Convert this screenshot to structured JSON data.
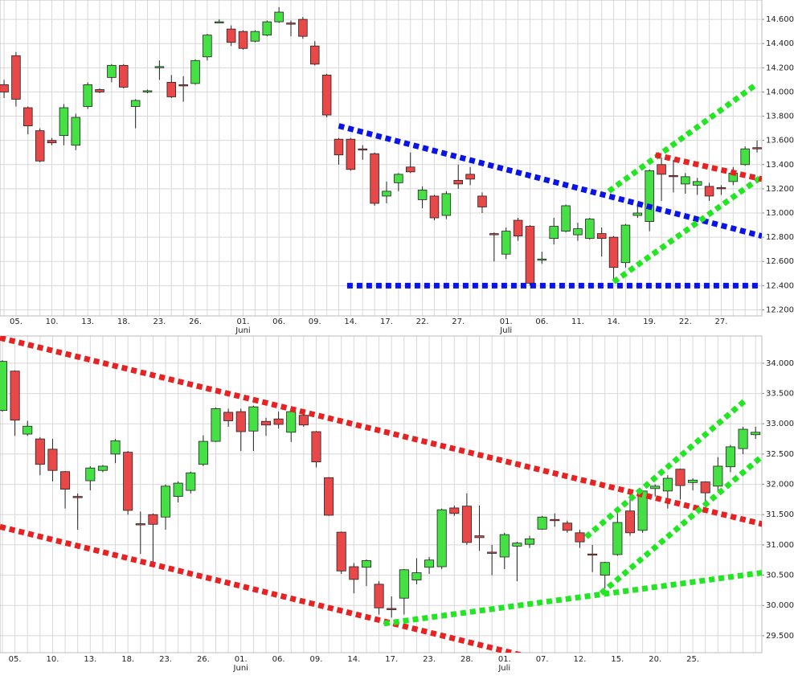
{
  "chart_data": [
    {
      "type": "candlestick",
      "up_color": "#44e044",
      "down_color": "#e84848",
      "grid": true,
      "xlim": [
        -0.34,
        63.4
      ],
      "ylim": [
        12150,
        14760
      ],
      "yticks": [
        {
          "value": 12200,
          "label": "12.200"
        },
        {
          "value": 12400,
          "label": "12.400"
        },
        {
          "value": 12600,
          "label": "12.600"
        },
        {
          "value": 12800,
          "label": "12.800"
        },
        {
          "value": 13000,
          "label": "13.000"
        },
        {
          "value": 13200,
          "label": "13.200"
        },
        {
          "value": 13400,
          "label": "13.400"
        },
        {
          "value": 13600,
          "label": "13.600"
        },
        {
          "value": 13800,
          "label": "13.800"
        },
        {
          "value": 14000,
          "label": "14.000"
        },
        {
          "value": 14200,
          "label": "14.200"
        },
        {
          "value": 14400,
          "label": "14.400"
        },
        {
          "value": 14600,
          "label": "14.600"
        }
      ],
      "categories": [
        null,
        "05.",
        null,
        null,
        "10.",
        null,
        null,
        "13.",
        null,
        null,
        "18.",
        null,
        null,
        "23.",
        null,
        null,
        "26.",
        null,
        null,
        null,
        "01. Juni",
        null,
        null,
        "06.",
        null,
        null,
        "09.",
        null,
        null,
        "14.",
        null,
        null,
        "17.",
        null,
        null,
        "22.",
        null,
        null,
        "27.",
        null,
        null,
        null,
        "01. Juli",
        null,
        null,
        "06.",
        null,
        null,
        "11.",
        null,
        null,
        "14.",
        null,
        null,
        "19.",
        null,
        null,
        "22.",
        null,
        null,
        "27.",
        null,
        null,
        null
      ],
      "open": [
        14060,
        14300,
        13870,
        13680,
        13600,
        13640,
        13560,
        13880,
        14020,
        14120,
        14220,
        13880,
        14000,
        14200,
        14080,
        14060,
        14070,
        14290,
        14570,
        14520,
        14500,
        14420,
        14470,
        14580,
        14570,
        14600,
        14380,
        14140,
        13610,
        13610,
        13530,
        13490,
        13140,
        13250,
        13380,
        13110,
        13140,
        12980,
        13270,
        13320,
        13140,
        12830,
        12660,
        12940,
        12890,
        12610,
        12790,
        12850,
        12820,
        12790,
        12830,
        12800,
        12590,
        12980,
        12930,
        13400,
        13310,
        13240,
        13230,
        13220,
        13210,
        13260,
        13400,
        13540
      ],
      "high": [
        14100,
        14330,
        13880,
        13700,
        13620,
        13900,
        13820,
        14080,
        14030,
        14230,
        14230,
        13940,
        14020,
        14260,
        14140,
        14130,
        14270,
        14480,
        14600,
        14550,
        14510,
        14510,
        14590,
        14700,
        14590,
        14620,
        14420,
        14150,
        13620,
        13620,
        13560,
        13500,
        13260,
        13330,
        13500,
        13220,
        13150,
        13180,
        13400,
        13380,
        13170,
        12840,
        12880,
        12960,
        12900,
        12680,
        12960,
        13070,
        12920,
        12960,
        12880,
        12810,
        12910,
        13080,
        13360,
        13460,
        13440,
        13330,
        13290,
        13250,
        13230,
        13380,
        13550,
        13600
      ],
      "low": [
        13950,
        13880,
        13650,
        13420,
        13560,
        13560,
        13520,
        13860,
        13990,
        14080,
        14030,
        13700,
        13990,
        14100,
        13950,
        13920,
        14060,
        14260,
        14570,
        14380,
        14350,
        14410,
        14460,
        14570,
        14460,
        14440,
        14220,
        13790,
        13400,
        13350,
        13440,
        13060,
        13080,
        13180,
        13330,
        13040,
        12940,
        12950,
        13200,
        13230,
        13000,
        12600,
        12620,
        12770,
        12400,
        12580,
        12740,
        12840,
        12770,
        12780,
        12640,
        12450,
        12550,
        12960,
        12850,
        13100,
        13170,
        13160,
        13150,
        13100,
        13150,
        13230,
        13390,
        13500
      ],
      "close": [
        14000,
        13940,
        13720,
        13430,
        13580,
        13870,
        13790,
        14060,
        14000,
        14220,
        14040,
        13930,
        14010,
        14210,
        13960,
        14050,
        14260,
        14470,
        14580,
        14410,
        14360,
        14500,
        14580,
        14660,
        14560,
        14460,
        14230,
        13810,
        13480,
        13360,
        13520,
        13080,
        13180,
        13320,
        13340,
        13190,
        12960,
        13160,
        13240,
        13280,
        13050,
        12820,
        12850,
        12810,
        12420,
        12620,
        12890,
        13060,
        12870,
        12950,
        12790,
        12550,
        12900,
        13000,
        13350,
        13320,
        13300,
        13300,
        13260,
        13140,
        13200,
        13330,
        13530,
        13530
      ],
      "trendlines": [
        {
          "color": "#0a14e6",
          "x": [
            28,
            63.4
          ],
          "y": [
            13720,
            12810
          ]
        },
        {
          "color": "#0a14e6",
          "x": [
            28.7,
            63.4
          ],
          "y": [
            12400,
            12400
          ]
        },
        {
          "color": "#22e622",
          "x": [
            50.6,
            62.9
          ],
          "y": [
            13180,
            14060
          ]
        },
        {
          "color": "#22e622",
          "x": [
            51,
            63.4
          ],
          "y": [
            12430,
            13300
          ]
        },
        {
          "color": "#e62222",
          "x": [
            54.5,
            63.4
          ],
          "y": [
            13480,
            13280
          ]
        }
      ]
    },
    {
      "type": "candlestick",
      "up_color": "#44e044",
      "down_color": "#e84848",
      "grid": true,
      "xlim": [
        -0.19,
        60.5
      ],
      "ylim": [
        29220,
        34450
      ],
      "yticks": [
        {
          "value": 29500,
          "label": "29.500"
        },
        {
          "value": 30000,
          "label": "30.000"
        },
        {
          "value": 30500,
          "label": "30.500"
        },
        {
          "value": 31000,
          "label": "31.000"
        },
        {
          "value": 31500,
          "label": "31.500"
        },
        {
          "value": 32000,
          "label": "32.000"
        },
        {
          "value": 32500,
          "label": "32.500"
        },
        {
          "value": 33000,
          "label": "33.000"
        },
        {
          "value": 33500,
          "label": "33.500"
        },
        {
          "value": 34000,
          "label": "34.000"
        }
      ],
      "categories": [
        null,
        "05.",
        null,
        null,
        "10.",
        null,
        null,
        "13.",
        null,
        null,
        "18.",
        null,
        null,
        "23.",
        null,
        null,
        "26.",
        null,
        null,
        "01. Juni",
        null,
        null,
        "06.",
        null,
        null,
        "09.",
        null,
        null,
        "14.",
        null,
        null,
        "17.",
        null,
        null,
        "23.",
        null,
        null,
        "28.",
        null,
        null,
        "01. Juli",
        null,
        null,
        "07.",
        null,
        null,
        "12.",
        null,
        null,
        "15.",
        null,
        null,
        "20.",
        null,
        null,
        "25.",
        null,
        null,
        null,
        null,
        null
      ],
      "open": [
        33220,
        33870,
        32830,
        32750,
        32580,
        32210,
        31800,
        32060,
        32230,
        32500,
        32530,
        31350,
        31500,
        31460,
        31800,
        31900,
        32330,
        32710,
        33190,
        33200,
        32880,
        33040,
        33080,
        32860,
        33140,
        32870,
        32110,
        31210,
        30640,
        30630,
        30350,
        29950,
        30120,
        30420,
        30630,
        30640,
        31610,
        31640,
        31150,
        30880,
        30800,
        30980,
        31010,
        31260,
        31420,
        31360,
        31200,
        30850,
        30500,
        30840,
        31560,
        31240,
        31930,
        31890,
        32250,
        32030,
        32040,
        31970,
        32290,
        32590,
        32820
      ],
      "high": [
        34050,
        33880,
        33050,
        32780,
        32750,
        32220,
        31850,
        32300,
        32320,
        32750,
        32550,
        31550,
        31520,
        32000,
        32050,
        32210,
        32810,
        33270,
        33250,
        33250,
        33300,
        33100,
        33200,
        33220,
        33200,
        32880,
        32120,
        31220,
        30700,
        30760,
        30400,
        30150,
        30600,
        30780,
        30800,
        31600,
        31650,
        31850,
        31650,
        31000,
        31200,
        31050,
        31150,
        31480,
        31520,
        31400,
        31250,
        31000,
        30720,
        31560,
        31850,
        31900,
        32000,
        32150,
        32260,
        32100,
        32050,
        32450,
        32650,
        32950,
        32950
      ],
      "low": [
        33200,
        32800,
        32800,
        32150,
        32050,
        31600,
        31250,
        31900,
        32200,
        32350,
        31500,
        30850,
        30650,
        31250,
        31700,
        31850,
        32300,
        32700,
        32950,
        32550,
        32550,
        32800,
        32920,
        32700,
        32950,
        32280,
        31480,
        30520,
        30200,
        30320,
        29850,
        29800,
        29850,
        30350,
        30520,
        30600,
        31480,
        31000,
        30900,
        30500,
        30600,
        30400,
        30950,
        31250,
        31300,
        31200,
        30950,
        30550,
        30280,
        30820,
        31150,
        31200,
        31800,
        31600,
        31750,
        31900,
        31700,
        31900,
        32200,
        32500,
        32750
      ],
      "close": [
        34030,
        33060,
        32960,
        32330,
        32230,
        31920,
        31790,
        32270,
        32300,
        32720,
        31570,
        31340,
        31340,
        31970,
        32020,
        32190,
        32710,
        33250,
        33050,
        32870,
        33280,
        32980,
        32990,
        33200,
        32980,
        32370,
        31490,
        30570,
        30430,
        30740,
        29960,
        29930,
        30590,
        30540,
        30750,
        31580,
        31520,
        31040,
        31120,
        30860,
        31170,
        31030,
        31100,
        31460,
        31410,
        31240,
        31050,
        30840,
        30710,
        31370,
        31200,
        31890,
        31970,
        32100,
        31980,
        32070,
        31860,
        32300,
        32620,
        32910,
        32860
      ],
      "trendlines": [
        {
          "color": "#e62222",
          "x": [
            -0.19,
            61.8
          ],
          "y": [
            34420,
            31280
          ]
        },
        {
          "color": "#e62222",
          "x": [
            -0.19,
            47.8
          ],
          "y": [
            31300,
            28850
          ]
        },
        {
          "color": "#22e622",
          "x": [
            46.5,
            59.2
          ],
          "y": [
            31130,
            33390
          ]
        },
        {
          "color": "#22e622",
          "x": [
            47.7,
            60.5
          ],
          "y": [
            30200,
            32460
          ]
        },
        {
          "color": "#22e622",
          "x": [
            30.4,
            60.5
          ],
          "y": [
            29700,
            30540
          ]
        }
      ]
    }
  ]
}
